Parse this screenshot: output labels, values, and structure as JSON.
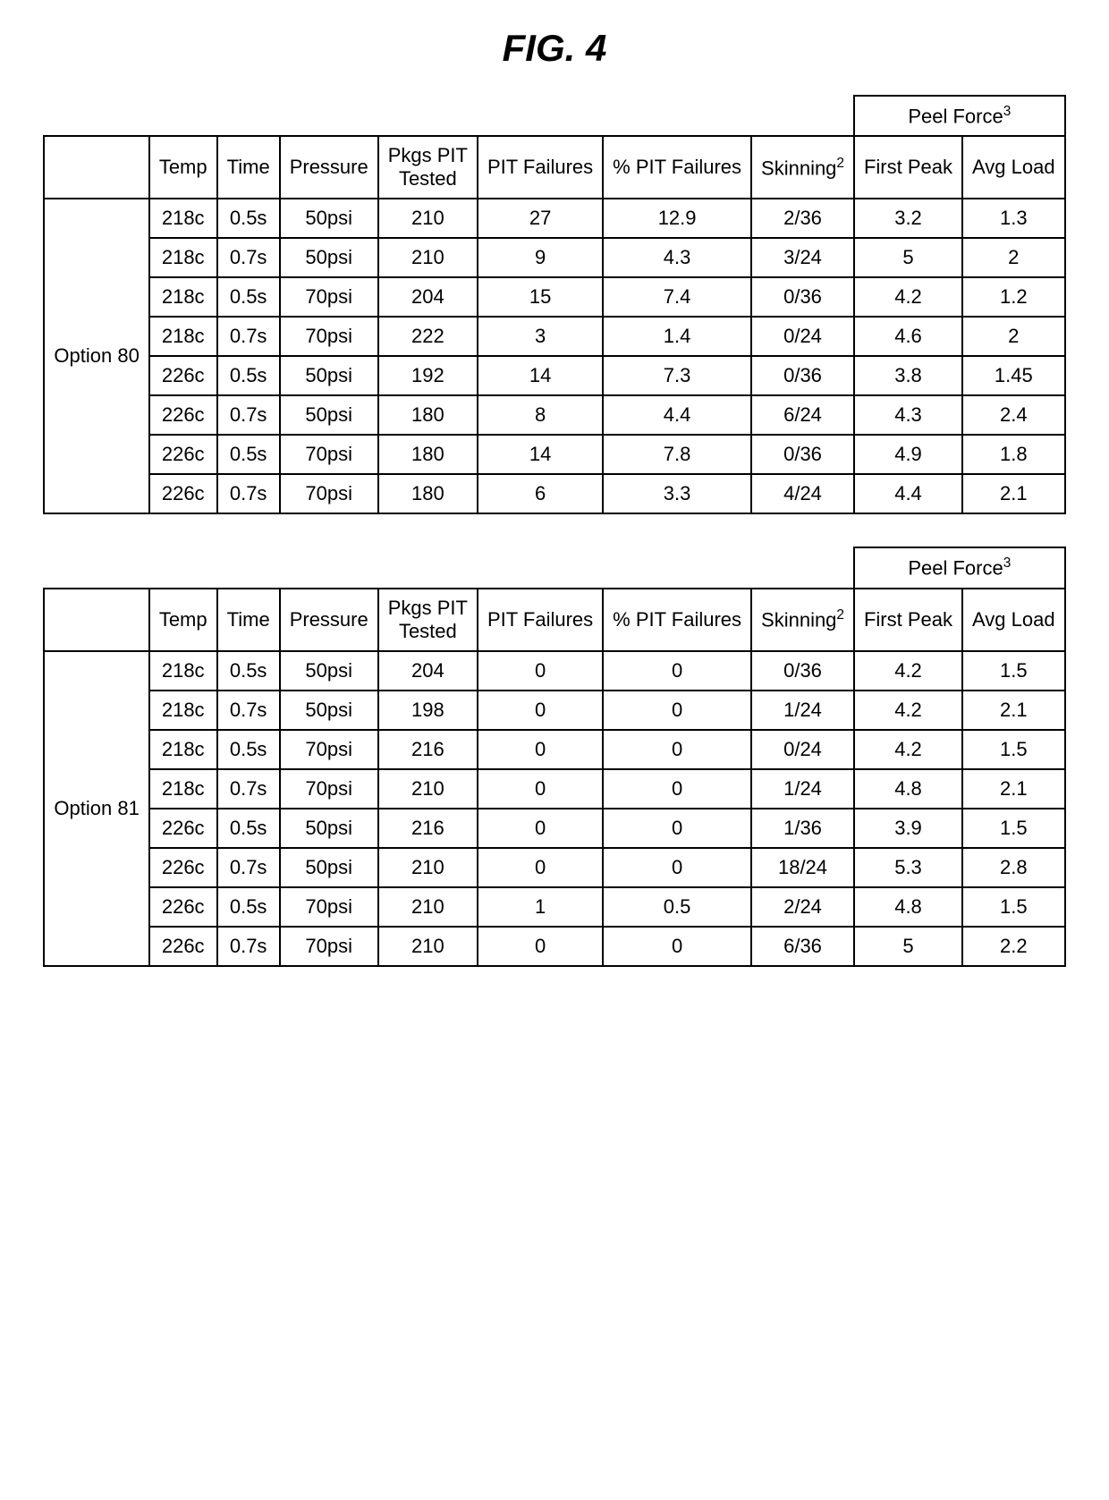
{
  "title": "FIG. 4",
  "columns": {
    "option": "",
    "temp": "Temp",
    "time": "Time",
    "pressure": "Pressure",
    "pkgs": "Pkgs PIT\nTested",
    "pit_failures": "PIT Failures",
    "pct_pit": "% PIT Failures",
    "skinning": "Skinning",
    "peel_force": "Peel Force",
    "first_peak": "First Peak",
    "avg_load": "Avg Load"
  },
  "superscripts": {
    "skinning": "2",
    "peel_force": "3"
  },
  "tables": [
    {
      "option_label": "Option 80",
      "rows": [
        {
          "temp": "218c",
          "time": "0.5s",
          "pressure": "50psi",
          "pkgs": "210",
          "pitf": "27",
          "pct": "12.9",
          "skin": "2/36",
          "peak": "3.2",
          "avg": "1.3"
        },
        {
          "temp": "218c",
          "time": "0.7s",
          "pressure": "50psi",
          "pkgs": "210",
          "pitf": "9",
          "pct": "4.3",
          "skin": "3/24",
          "peak": "5",
          "avg": "2"
        },
        {
          "temp": "218c",
          "time": "0.5s",
          "pressure": "70psi",
          "pkgs": "204",
          "pitf": "15",
          "pct": "7.4",
          "skin": "0/36",
          "peak": "4.2",
          "avg": "1.2"
        },
        {
          "temp": "218c",
          "time": "0.7s",
          "pressure": "70psi",
          "pkgs": "222",
          "pitf": "3",
          "pct": "1.4",
          "skin": "0/24",
          "peak": "4.6",
          "avg": "2"
        },
        {
          "temp": "226c",
          "time": "0.5s",
          "pressure": "50psi",
          "pkgs": "192",
          "pitf": "14",
          "pct": "7.3",
          "skin": "0/36",
          "peak": "3.8",
          "avg": "1.45"
        },
        {
          "temp": "226c",
          "time": "0.7s",
          "pressure": "50psi",
          "pkgs": "180",
          "pitf": "8",
          "pct": "4.4",
          "skin": "6/24",
          "peak": "4.3",
          "avg": "2.4"
        },
        {
          "temp": "226c",
          "time": "0.5s",
          "pressure": "70psi",
          "pkgs": "180",
          "pitf": "14",
          "pct": "7.8",
          "skin": "0/36",
          "peak": "4.9",
          "avg": "1.8"
        },
        {
          "temp": "226c",
          "time": "0.7s",
          "pressure": "70psi",
          "pkgs": "180",
          "pitf": "6",
          "pct": "3.3",
          "skin": "4/24",
          "peak": "4.4",
          "avg": "2.1"
        }
      ]
    },
    {
      "option_label": "Option 81",
      "rows": [
        {
          "temp": "218c",
          "time": "0.5s",
          "pressure": "50psi",
          "pkgs": "204",
          "pitf": "0",
          "pct": "0",
          "skin": "0/36",
          "peak": "4.2",
          "avg": "1.5"
        },
        {
          "temp": "218c",
          "time": "0.7s",
          "pressure": "50psi",
          "pkgs": "198",
          "pitf": "0",
          "pct": "0",
          "skin": "1/24",
          "peak": "4.2",
          "avg": "2.1"
        },
        {
          "temp": "218c",
          "time": "0.5s",
          "pressure": "70psi",
          "pkgs": "216",
          "pitf": "0",
          "pct": "0",
          "skin": "0/24",
          "peak": "4.2",
          "avg": "1.5"
        },
        {
          "temp": "218c",
          "time": "0.7s",
          "pressure": "70psi",
          "pkgs": "210",
          "pitf": "0",
          "pct": "0",
          "skin": "1/24",
          "peak": "4.8",
          "avg": "2.1"
        },
        {
          "temp": "226c",
          "time": "0.5s",
          "pressure": "50psi",
          "pkgs": "216",
          "pitf": "0",
          "pct": "0",
          "skin": "1/36",
          "peak": "3.9",
          "avg": "1.5"
        },
        {
          "temp": "226c",
          "time": "0.7s",
          "pressure": "50psi",
          "pkgs": "210",
          "pitf": "0",
          "pct": "0",
          "skin": "18/24",
          "peak": "5.3",
          "avg": "2.8"
        },
        {
          "temp": "226c",
          "time": "0.5s",
          "pressure": "70psi",
          "pkgs": "210",
          "pitf": "1",
          "pct": "0.5",
          "skin": "2/24",
          "peak": "4.8",
          "avg": "1.5"
        },
        {
          "temp": "226c",
          "time": "0.7s",
          "pressure": "70psi",
          "pkgs": "210",
          "pitf": "0",
          "pct": "0",
          "skin": "6/36",
          "peak": "5",
          "avg": "2.2"
        }
      ]
    }
  ]
}
